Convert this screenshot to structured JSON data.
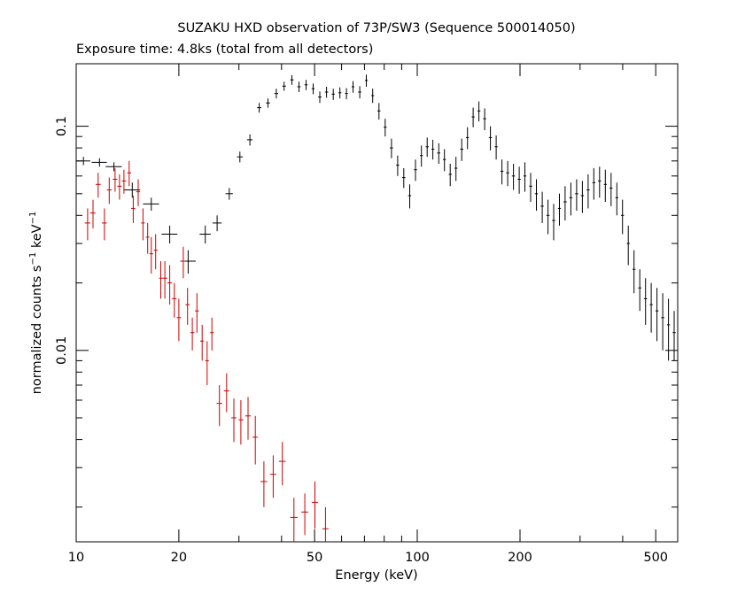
{
  "chart_data": {
    "type": "scatter",
    "title": "SUZAKU HXD observation of 73P/SW3 (Sequence 500014050)",
    "subtitle": "Exposure time: 4.8ks (total from all detectors)",
    "xlabel": "Energy (keV)",
    "ylabel": {
      "base": "normalized counts s",
      "exp1": "−1",
      "mid": " keV",
      "exp2": "−1"
    },
    "x_scale": "log",
    "y_scale": "log",
    "xlim": [
      10,
      580
    ],
    "ylim": [
      0.0014,
      0.19
    ],
    "x_ticks": [
      {
        "value": 10,
        "label": "10"
      },
      {
        "value": 20,
        "label": "20"
      },
      {
        "value": 50,
        "label": "50"
      },
      {
        "value": 100,
        "label": "100"
      },
      {
        "value": 200,
        "label": "200"
      },
      {
        "value": 500,
        "label": "500"
      }
    ],
    "y_ticks": [
      {
        "value": 0.01,
        "label": "0.01"
      },
      {
        "value": 0.1,
        "label": "0.1"
      }
    ],
    "grid": false,
    "legend": "none",
    "series": [
      {
        "color": "#000000",
        "points": [
          [
            10.5,
            0.07,
            0.5,
            0.003
          ],
          [
            11.7,
            0.069,
            0.6,
            0.003
          ],
          [
            12.9,
            0.066,
            0.7,
            0.003
          ],
          [
            14.6,
            0.052,
            0.8,
            0.004
          ],
          [
            16.6,
            0.045,
            0.9,
            0.003
          ],
          [
            18.8,
            0.033,
            1.0,
            0.003
          ],
          [
            21.3,
            0.025,
            1.1,
            0.003
          ],
          [
            23.9,
            0.033,
            0.9,
            0.003
          ],
          [
            25.9,
            0.037,
            0.8,
            0.003
          ],
          [
            28.1,
            0.05,
            0.7,
            0.003
          ],
          [
            30.2,
            0.073,
            0.6,
            0.004
          ],
          [
            32.3,
            0.087,
            0.6,
            0.005
          ],
          [
            34.4,
            0.121,
            0.5,
            0.006
          ],
          [
            36.5,
            0.127,
            0.5,
            0.006
          ],
          [
            38.6,
            0.14,
            0.5,
            0.007
          ],
          [
            40.7,
            0.151,
            0.5,
            0.007
          ],
          [
            42.9,
            0.161,
            0.5,
            0.008
          ],
          [
            45.0,
            0.15,
            0.5,
            0.008
          ],
          [
            47.2,
            0.153,
            0.5,
            0.008
          ],
          [
            49.5,
            0.147,
            0.5,
            0.008
          ],
          [
            51.8,
            0.135,
            0.6,
            0.008
          ],
          [
            54.2,
            0.142,
            0.6,
            0.008
          ],
          [
            56.7,
            0.139,
            0.6,
            0.008
          ],
          [
            59.3,
            0.141,
            0.6,
            0.008
          ],
          [
            62.0,
            0.14,
            0.6,
            0.008
          ],
          [
            64.8,
            0.15,
            0.6,
            0.009
          ],
          [
            67.8,
            0.142,
            0.7,
            0.009
          ],
          [
            70.9,
            0.16,
            0.7,
            0.01
          ],
          [
            74.0,
            0.137,
            0.7,
            0.01
          ],
          [
            77.2,
            0.117,
            0.8,
            0.01
          ],
          [
            80.5,
            0.099,
            0.8,
            0.009
          ],
          [
            84.0,
            0.08,
            0.9,
            0.008
          ],
          [
            87.6,
            0.067,
            0.9,
            0.007
          ],
          [
            91.3,
            0.059,
            1.0,
            0.006
          ],
          [
            95.0,
            0.049,
            1.0,
            0.006
          ],
          [
            98.8,
            0.064,
            1.0,
            0.007
          ],
          [
            102.8,
            0.074,
            1.0,
            0.008
          ],
          [
            106.9,
            0.081,
            1.1,
            0.008
          ],
          [
            111.1,
            0.079,
            1.1,
            0.008
          ],
          [
            115.6,
            0.076,
            1.2,
            0.008
          ],
          [
            120.1,
            0.071,
            1.2,
            0.008
          ],
          [
            124.9,
            0.061,
            1.3,
            0.007
          ],
          [
            129.8,
            0.065,
            1.3,
            0.008
          ],
          [
            135.0,
            0.079,
            1.4,
            0.009
          ],
          [
            140.3,
            0.089,
            1.4,
            0.01
          ],
          [
            145.8,
            0.11,
            1.5,
            0.011
          ],
          [
            151.6,
            0.117,
            1.5,
            0.012
          ],
          [
            157.6,
            0.108,
            1.6,
            0.012
          ],
          [
            163.8,
            0.089,
            1.7,
            0.011
          ],
          [
            170.3,
            0.081,
            1.7,
            0.01
          ],
          [
            177.1,
            0.063,
            1.8,
            0.008
          ],
          [
            184.1,
            0.062,
            1.9,
            0.008
          ],
          [
            191.4,
            0.06,
            2.0,
            0.008
          ],
          [
            199.0,
            0.058,
            2.0,
            0.008
          ],
          [
            206.8,
            0.06,
            2.1,
            0.009
          ],
          [
            215.0,
            0.054,
            2.2,
            0.008
          ],
          [
            223.5,
            0.05,
            2.3,
            0.008
          ],
          [
            232.4,
            0.044,
            2.4,
            0.007
          ],
          [
            241.6,
            0.04,
            2.5,
            0.007
          ],
          [
            251.1,
            0.038,
            2.5,
            0.007
          ],
          [
            261.0,
            0.043,
            2.6,
            0.007
          ],
          [
            271.3,
            0.046,
            2.8,
            0.008
          ],
          [
            282.0,
            0.048,
            2.9,
            0.008
          ],
          [
            293.2,
            0.05,
            3.0,
            0.008
          ],
          [
            304.8,
            0.049,
            3.1,
            0.008
          ],
          [
            316.8,
            0.052,
            3.2,
            0.009
          ],
          [
            329.3,
            0.056,
            3.4,
            0.009
          ],
          [
            342.3,
            0.057,
            3.5,
            0.009
          ],
          [
            355.9,
            0.055,
            3.6,
            0.009
          ],
          [
            369.9,
            0.053,
            3.8,
            0.009
          ],
          [
            384.5,
            0.048,
            3.9,
            0.008
          ],
          [
            399.7,
            0.04,
            4.1,
            0.007
          ],
          [
            415.5,
            0.03,
            4.2,
            0.006
          ],
          [
            431.9,
            0.023,
            4.4,
            0.005
          ],
          [
            449.0,
            0.019,
            4.6,
            0.004
          ],
          [
            466.7,
            0.017,
            4.8,
            0.004
          ],
          [
            485.1,
            0.016,
            4.9,
            0.004
          ],
          [
            504.3,
            0.015,
            5.1,
            0.004
          ],
          [
            524.2,
            0.014,
            5.3,
            0.004
          ],
          [
            544.9,
            0.013,
            5.5,
            0.004
          ],
          [
            566.4,
            0.012,
            5.7,
            0.003
          ]
        ]
      },
      {
        "color": "#cc0000",
        "points": [
          [
            10.8,
            0.037,
            0.2,
            0.006
          ],
          [
            11.2,
            0.041,
            0.2,
            0.006
          ],
          [
            11.6,
            0.055,
            0.2,
            0.007
          ],
          [
            12.1,
            0.037,
            0.2,
            0.006
          ],
          [
            12.5,
            0.052,
            0.2,
            0.007
          ],
          [
            13.0,
            0.058,
            0.2,
            0.007
          ],
          [
            13.4,
            0.054,
            0.2,
            0.007
          ],
          [
            13.8,
            0.057,
            0.2,
            0.007
          ],
          [
            14.3,
            0.062,
            0.2,
            0.008
          ],
          [
            14.7,
            0.043,
            0.2,
            0.006
          ],
          [
            15.2,
            0.051,
            0.2,
            0.007
          ],
          [
            15.7,
            0.037,
            0.2,
            0.006
          ],
          [
            16.2,
            0.032,
            0.2,
            0.005
          ],
          [
            16.6,
            0.027,
            0.2,
            0.005
          ],
          [
            17.1,
            0.028,
            0.2,
            0.005
          ],
          [
            17.7,
            0.021,
            0.2,
            0.004
          ],
          [
            18.2,
            0.021,
            0.3,
            0.004
          ],
          [
            18.8,
            0.02,
            0.3,
            0.004
          ],
          [
            19.4,
            0.017,
            0.3,
            0.003
          ],
          [
            20.0,
            0.014,
            0.3,
            0.003
          ],
          [
            20.6,
            0.025,
            0.3,
            0.004
          ],
          [
            21.2,
            0.016,
            0.3,
            0.003
          ],
          [
            21.9,
            0.012,
            0.3,
            0.002
          ],
          [
            22.6,
            0.015,
            0.3,
            0.003
          ],
          [
            23.4,
            0.011,
            0.3,
            0.002
          ],
          [
            24.2,
            0.009,
            0.3,
            0.002
          ],
          [
            25.0,
            0.012,
            0.3,
            0.002
          ],
          [
            26.3,
            0.0058,
            0.5,
            0.0012
          ],
          [
            27.6,
            0.0066,
            0.5,
            0.0013
          ],
          [
            29.0,
            0.005,
            0.5,
            0.0011
          ],
          [
            30.4,
            0.0049,
            0.5,
            0.0011
          ],
          [
            31.9,
            0.0051,
            0.6,
            0.0011
          ],
          [
            33.5,
            0.0041,
            0.6,
            0.001
          ],
          [
            35.5,
            0.0026,
            0.8,
            0.0006
          ],
          [
            37.8,
            0.0028,
            0.8,
            0.0006
          ],
          [
            40.2,
            0.0032,
            0.9,
            0.0007
          ],
          [
            43.5,
            0.0018,
            1.1,
            0.0004
          ],
          [
            46.8,
            0.0019,
            1.1,
            0.0004
          ],
          [
            50.1,
            0.0021,
            1.1,
            0.0005
          ],
          [
            53.8,
            0.0016,
            1.1,
            0.0004
          ]
        ]
      }
    ]
  }
}
